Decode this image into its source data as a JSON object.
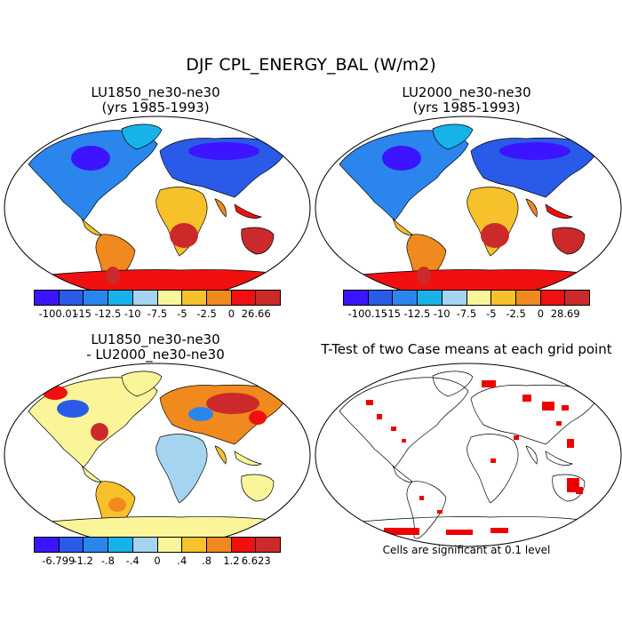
{
  "title": "DJF CPL_ENERGY_BAL (W/m2)",
  "panels": [
    {
      "title_line1": "LU1850_ne30-ne30",
      "title_line2": "(yrs 1985-1993)"
    },
    {
      "title_line1": "LU2000_ne30-ne30",
      "title_line2": "(yrs 1985-1993)"
    },
    {
      "title_line1": "LU1850_ne30-ne30",
      "title_line2": "- LU2000_ne30-ne30"
    },
    {
      "title_line1": "T-Test of two Case means at each grid point"
    }
  ],
  "colorbars": {
    "case_colors": [
      "#3c14ff",
      "#2a5be8",
      "#2a86ec",
      "#18b2ea",
      "#a4d4ef",
      "#fbf59a",
      "#f6c12a",
      "#f08a1e",
      "#f01010",
      "#cc2a2a"
    ],
    "cb1_labels": [
      "-100.01",
      "-15",
      "-12.5",
      "-10",
      "-7.5",
      "-5",
      "-2.5",
      "0",
      "26.66"
    ],
    "cb2_labels": [
      "-100.15",
      "-15",
      "-12.5",
      "-10",
      "-7.5",
      "-5",
      "-2.5",
      "0",
      "28.69"
    ],
    "diff_colors": [
      "#3c14ff",
      "#2a5be8",
      "#2a86ec",
      "#18b2ea",
      "#a4d4ef",
      "#fbf59a",
      "#f6c12a",
      "#f08a1e",
      "#f01010",
      "#cc2a2a"
    ],
    "cb3_labels": [
      "-6.799",
      "-1.2",
      "-.8",
      "-.4",
      "0",
      ".4",
      ".8",
      "1.2",
      "6.623"
    ]
  },
  "significance_note": "Cells are significant at 0.1 level"
}
